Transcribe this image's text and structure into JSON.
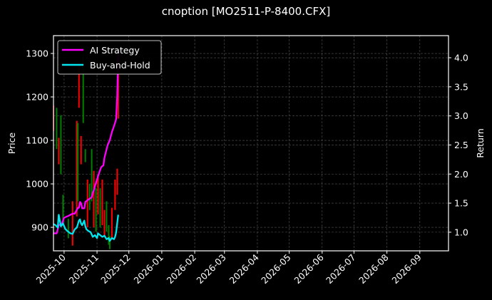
{
  "chart_data": {
    "type": "line",
    "title": "cnoption [MO2511-P-8400.CFX]",
    "xlabel": "",
    "ylabel": "Price",
    "y2label": "Return",
    "ylim": [
      846,
      1341
    ],
    "y2lim": [
      0.68,
      4.38
    ],
    "xlim": [
      "2025-09-21",
      "2026-09-28"
    ],
    "grid": true,
    "legend_position": "upper left",
    "x_ticks": [
      "2025-10",
      "2025-11",
      "2025-12",
      "2026-01",
      "2026-02",
      "2026-03",
      "2026-04",
      "2026-05",
      "2026-06",
      "2026-07",
      "2026-08",
      "2026-09"
    ],
    "y_ticks": [
      900,
      1000,
      1100,
      1200,
      1300
    ],
    "y2_ticks": [
      1.0,
      1.5,
      2.0,
      2.5,
      3.0,
      3.5,
      4.0
    ],
    "series": [
      {
        "name": "AI Strategy",
        "axis": "right",
        "color": "#ff00ff",
        "x": [
          "2025-09-21",
          "2025-09-24",
          "2025-09-26",
          "2025-09-29",
          "2025-10-01",
          "2025-10-05",
          "2025-10-09",
          "2025-10-11",
          "2025-10-14",
          "2025-10-15",
          "2025-10-16",
          "2025-10-17",
          "2025-10-18",
          "2025-10-20",
          "2025-10-21",
          "2025-10-23",
          "2025-10-27",
          "2025-10-28",
          "2025-10-29",
          "2025-10-30",
          "2025-10-31",
          "2025-11-03",
          "2025-11-05",
          "2025-11-07",
          "2025-11-08",
          "2025-11-11",
          "2025-11-13",
          "2025-11-15",
          "2025-11-18",
          "2025-11-19",
          "2025-11-20",
          "2025-11-21"
        ],
        "values": [
          0.98,
          0.98,
          1.12,
          1.15,
          1.25,
          1.28,
          1.32,
          1.32,
          1.42,
          1.42,
          1.52,
          1.5,
          1.41,
          1.41,
          1.52,
          1.55,
          1.6,
          1.68,
          1.72,
          1.79,
          1.85,
          2.02,
          2.12,
          2.15,
          2.28,
          2.5,
          2.58,
          2.72,
          2.88,
          2.95,
          3.35,
          4.1
        ]
      },
      {
        "name": "Buy-and-Hold",
        "axis": "right",
        "color": "#00e5ee",
        "x": [
          "2025-09-21",
          "2025-09-23",
          "2025-09-25",
          "2025-09-26",
          "2025-09-28",
          "2025-09-30",
          "2025-10-02",
          "2025-10-04",
          "2025-10-07",
          "2025-10-09",
          "2025-10-11",
          "2025-10-13",
          "2025-10-15",
          "2025-10-16",
          "2025-10-17",
          "2025-10-18",
          "2025-10-20",
          "2025-10-21",
          "2025-10-22",
          "2025-10-24",
          "2025-10-26",
          "2025-10-28",
          "2025-10-30",
          "2025-11-01",
          "2025-11-02",
          "2025-11-04",
          "2025-11-06",
          "2025-11-08",
          "2025-11-10",
          "2025-11-12",
          "2025-11-13",
          "2025-11-15",
          "2025-11-17",
          "2025-11-18",
          "2025-11-19",
          "2025-11-21"
        ],
        "values": [
          1.14,
          1.12,
          1.08,
          1.3,
          1.1,
          1.15,
          1.06,
          1.02,
          0.98,
          0.97,
          1.05,
          1.08,
          1.2,
          1.22,
          1.15,
          1.12,
          1.2,
          1.1,
          1.05,
          1.02,
          1.0,
          0.92,
          0.95,
          0.9,
          0.98,
          0.95,
          0.92,
          0.94,
          0.88,
          0.9,
          0.85,
          0.9,
          0.88,
          0.92,
          1.0,
          1.3
        ]
      }
    ],
    "candles": {
      "axis": "left",
      "up_color": "#008000",
      "down_color": "#ff0000",
      "items": [
        {
          "date": "2025-09-21",
          "low": 1122,
          "high": 1180,
          "dir": "down"
        },
        {
          "date": "2025-09-24",
          "low": 1080,
          "high": 1175,
          "dir": "up"
        },
        {
          "date": "2025-09-26",
          "low": 1045,
          "high": 1106,
          "dir": "down"
        },
        {
          "date": "2025-09-28",
          "low": 1022,
          "high": 1158,
          "dir": "up"
        },
        {
          "date": "2025-09-30",
          "low": 905,
          "high": 975,
          "dir": "up"
        },
        {
          "date": "2025-10-05",
          "low": 875,
          "high": 920,
          "dir": "up"
        },
        {
          "date": "2025-10-09",
          "low": 858,
          "high": 960,
          "dir": "down"
        },
        {
          "date": "2025-10-13",
          "low": 925,
          "high": 1145,
          "dir": "down"
        },
        {
          "date": "2025-10-14",
          "low": 960,
          "high": 1140,
          "dir": "up"
        },
        {
          "date": "2025-10-15",
          "low": 1175,
          "high": 1280,
          "dir": "down"
        },
        {
          "date": "2025-10-17",
          "low": 1045,
          "high": 1110,
          "dir": "down"
        },
        {
          "date": "2025-10-19",
          "low": 1140,
          "high": 1300,
          "dir": "up"
        },
        {
          "date": "2025-10-21",
          "low": 1050,
          "high": 1080,
          "dir": "up"
        },
        {
          "date": "2025-10-23",
          "low": 900,
          "high": 1010,
          "dir": "down"
        },
        {
          "date": "2025-10-25",
          "low": 940,
          "high": 1000,
          "dir": "up"
        },
        {
          "date": "2025-10-27",
          "low": 960,
          "high": 1080,
          "dir": "up"
        },
        {
          "date": "2025-10-29",
          "low": 900,
          "high": 1030,
          "dir": "down"
        },
        {
          "date": "2025-10-31",
          "low": 890,
          "high": 990,
          "dir": "up"
        },
        {
          "date": "2025-11-02",
          "low": 930,
          "high": 1020,
          "dir": "down"
        },
        {
          "date": "2025-11-04",
          "low": 900,
          "high": 990,
          "dir": "up"
        },
        {
          "date": "2025-11-06",
          "low": 905,
          "high": 1010,
          "dir": "down"
        },
        {
          "date": "2025-11-08",
          "low": 880,
          "high": 940,
          "dir": "down"
        },
        {
          "date": "2025-11-10",
          "low": 890,
          "high": 960,
          "dir": "up"
        },
        {
          "date": "2025-11-12",
          "low": 860,
          "high": 905,
          "dir": "up"
        },
        {
          "date": "2025-11-13",
          "low": 850,
          "high": 880,
          "dir": "up"
        },
        {
          "date": "2025-11-15",
          "low": 875,
          "high": 945,
          "dir": "down"
        },
        {
          "date": "2025-11-18",
          "low": 940,
          "high": 1010,
          "dir": "down"
        },
        {
          "date": "2025-11-20",
          "low": 975,
          "high": 1035,
          "dir": "down"
        },
        {
          "date": "2025-11-21",
          "low": 1150,
          "high": 1260,
          "dir": "down"
        }
      ]
    }
  },
  "legend": {
    "items": [
      {
        "label": "AI Strategy",
        "color": "#ff00ff"
      },
      {
        "label": "Buy-and-Hold",
        "color": "#00e5ee"
      }
    ]
  },
  "colors": {
    "background": "#000000",
    "axes": "#ffffff",
    "grid": "#555555"
  }
}
